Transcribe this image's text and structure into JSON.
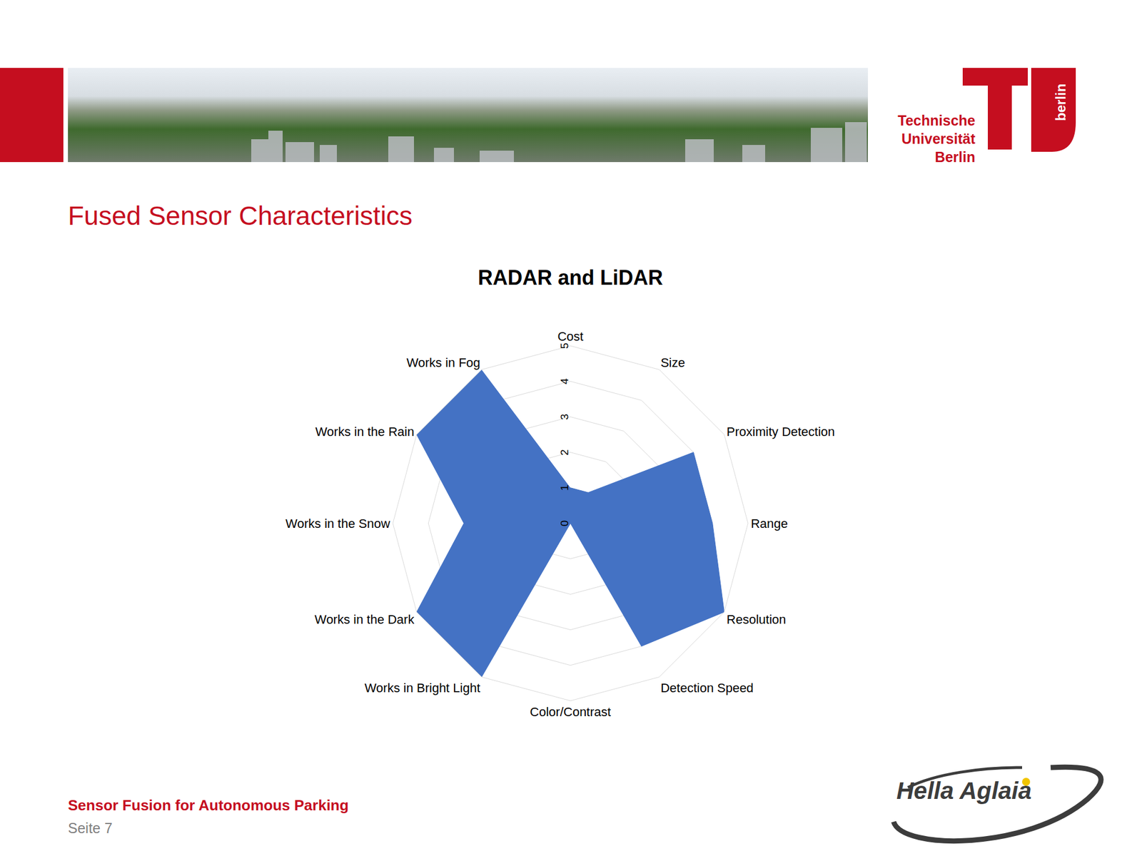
{
  "slide": {
    "title": "Fused Sensor Characteristics",
    "footer": "Sensor Fusion for Autonomous Parking",
    "page": "Seite 7",
    "university_logo": {
      "lines": [
        "Technische",
        "Universität",
        "Berlin"
      ],
      "tag": "berlin"
    },
    "partner_logo": "Hella Aglaia"
  },
  "chart_data": {
    "type": "radar",
    "title": "RADAR and LiDAR",
    "categories": [
      "Cost",
      "Size",
      "Proximity Detection",
      "Range",
      "Resolution",
      "Detection Speed",
      "Color/Contrast",
      "Works in Bright Light",
      "Works in the Dark",
      "Works in the Snow",
      "Works in the Rain",
      "Works in Fog"
    ],
    "values": [
      1,
      1,
      4,
      4,
      5,
      4,
      0,
      5,
      5,
      3,
      5,
      5
    ],
    "color": "#4472c4",
    "ylim": [
      0,
      5
    ],
    "yticks": [
      0,
      1,
      2,
      3,
      4,
      5
    ],
    "grid": true
  }
}
